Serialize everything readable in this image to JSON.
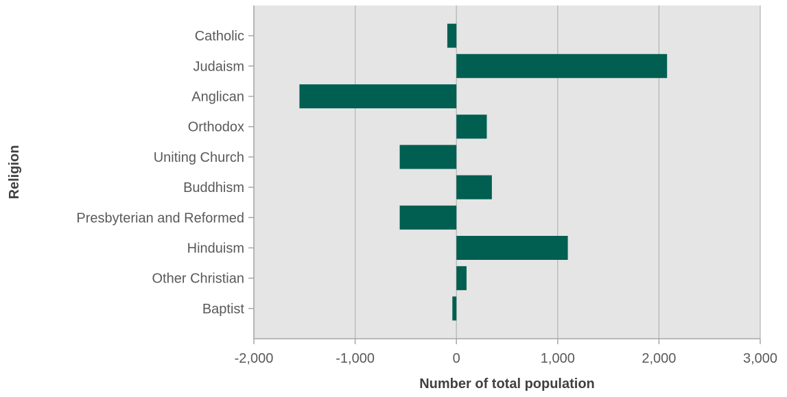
{
  "chart_data": {
    "type": "bar",
    "orientation": "horizontal",
    "title": "",
    "xlabel": "Number of total population",
    "ylabel": "Religion",
    "categories": [
      "Catholic",
      "Judaism",
      "Anglican",
      "Orthodox",
      "Uniting Church",
      "Buddhism",
      "Presbyterian and Reformed",
      "Hinduism",
      "Other Christian",
      "Baptist"
    ],
    "values": [
      -90,
      2080,
      -1550,
      300,
      -560,
      350,
      -560,
      1100,
      100,
      -40
    ],
    "xlim": [
      -2000,
      3000
    ],
    "xticks": [
      -2000,
      -1000,
      0,
      1000,
      2000,
      3000
    ],
    "xtick_labels": [
      "-2,000",
      "-1,000",
      "0",
      "1,000",
      "2,000",
      "3,000"
    ],
    "grid": "vertical",
    "legend": "none",
    "colors": {
      "bar": "#005f50",
      "plot_background": "#e5e5e5",
      "gridline": "#b3b3b3",
      "axis": "#a6a6a6"
    }
  }
}
